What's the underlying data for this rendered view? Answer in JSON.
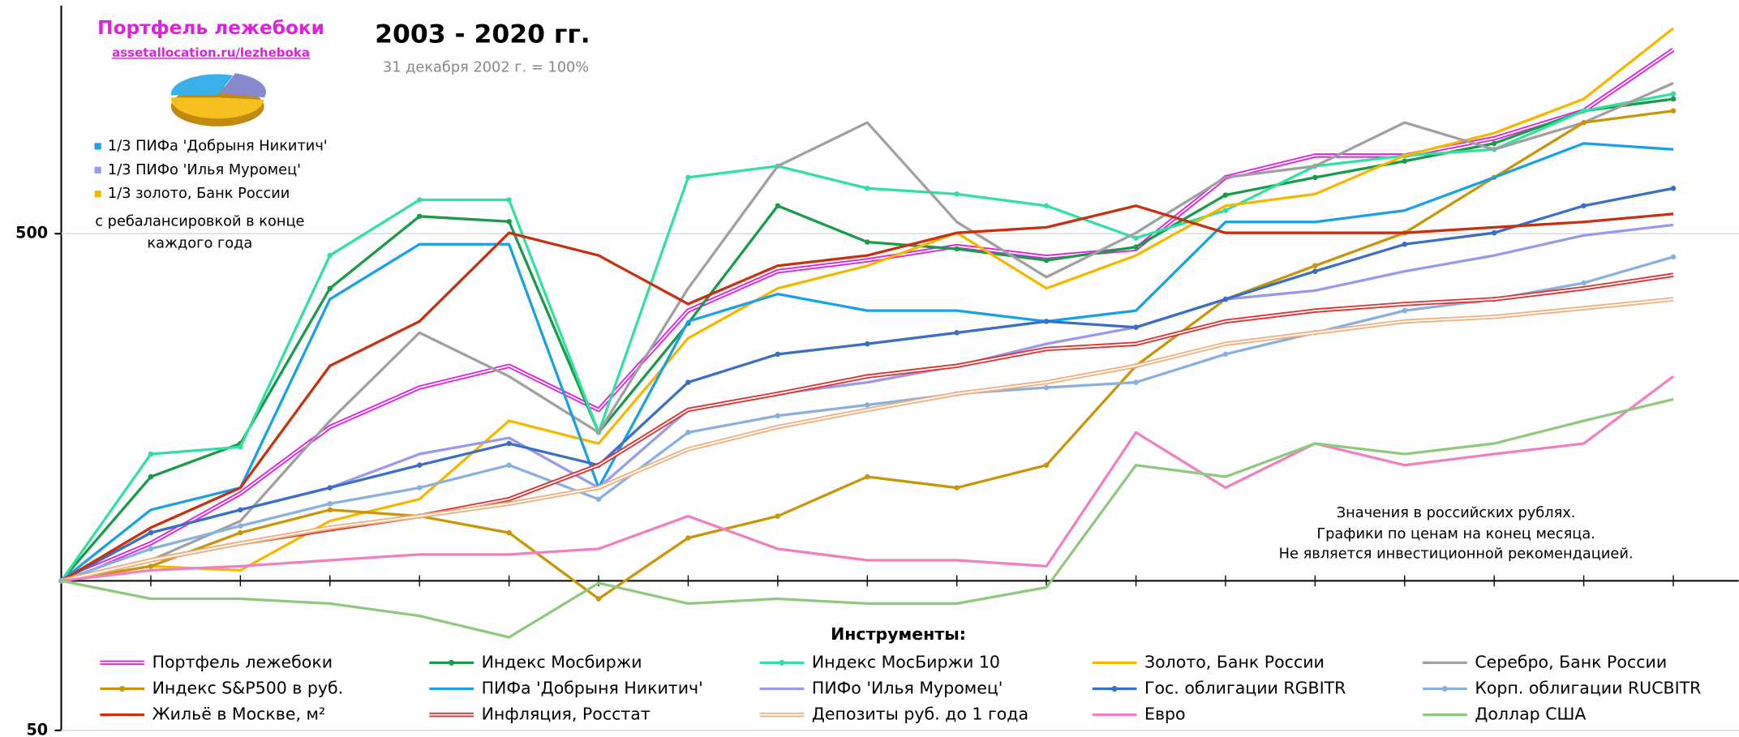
{
  "chart_data": {
    "type": "line",
    "title": "2003 - 2020 гг.",
    "subtitle": "31 декабря 2002 г. = 100%",
    "legend_title": "Инструменты:",
    "notes": [
      "Значения в российских рублях.",
      "Графики по ценам на конец месяца.",
      "Не является инвестиционной рекомендацией."
    ],
    "portfolio_box": {
      "title": "Портфель лежебоки",
      "link": "assetallocation.ru/lezheboka",
      "components": [
        {
          "text": "1/3 ПИФа 'Добрыня Никитич'",
          "color": "#1aa0e8"
        },
        {
          "text": "1/3 ПИФо 'Илья Муромец'",
          "color": "#9999ee"
        },
        {
          "text": "1/3 золото, Банк России",
          "color": "#f5b800"
        }
      ],
      "note": [
        "с ребалансировкой в конце",
        "каждого года"
      ]
    },
    "log_scale": true,
    "ylim": [
      50,
      1440
    ],
    "yticks": [
      50,
      500
    ],
    "x_axis_at": 100,
    "categories": [
      null,
      null,
      null,
      null,
      null,
      null,
      null,
      null,
      null,
      null,
      null,
      null,
      null,
      null,
      null,
      null,
      null,
      null,
      null
    ],
    "series": [
      {
        "name": "Портфель лежебоки",
        "color": "#e020e0",
        "style": "double",
        "values": [
          100,
          119,
          150,
          204,
          245,
          271,
          221,
          350,
          420,
          442,
          472,
          449,
          466,
          649,
          718,
          718,
          778,
          884,
          1174
        ]
      },
      {
        "name": "Индекс Мосбиржи",
        "color": "#1a9a4a",
        "markers": true,
        "values": [
          100,
          162,
          189,
          388,
          542,
          529,
          199,
          330,
          569,
          481,
          466,
          442,
          470,
          598,
          649,
          700,
          760,
          884,
          934
        ]
      },
      {
        "name": "Индекс МосБиржи 10",
        "color": "#33e0a0",
        "markers": true,
        "values": [
          100,
          180,
          186,
          452,
          585,
          585,
          199,
          649,
          684,
          617,
          601,
          569,
          490,
          557,
          684,
          718,
          739,
          884,
          956
        ]
      },
      {
        "name": "Золото, Банк России",
        "color": "#f5b800",
        "values": [
          100,
          107,
          105,
          132,
          146,
          210,
          189,
          308,
          388,
          431,
          502,
          388,
          452,
          569,
          601,
          718,
          797,
          934,
          1296
        ]
      },
      {
        "name": "Серебро, Банк России",
        "color": "#a0a0a0",
        "values": [
          100,
          110,
          132,
          210,
          316,
          258,
          199,
          388,
          684,
          837,
          528,
          409,
          502,
          649,
          684,
          837,
          739,
          837,
          1005
        ]
      },
      {
        "name": "Индекс S&P500 в руб.",
        "color": "#c8960a",
        "markers": true,
        "values": [
          100,
          107,
          125,
          139,
          135,
          125,
          92,
          122,
          135,
          162,
          154,
          171,
          271,
          369,
          431,
          502,
          649,
          837,
          884
        ]
      },
      {
        "name": "ПИФа 'Добрыня Никитич'",
        "color": "#1aa0e8",
        "values": [
          100,
          139,
          154,
          369,
          476,
          476,
          154,
          333,
          378,
          350,
          350,
          333,
          350,
          528,
          528,
          557,
          649,
          760,
          739
        ]
      },
      {
        "name": "ПИФо 'Илья Муромец'",
        "color": "#9999ee",
        "values": [
          100,
          125,
          139,
          154,
          180,
          194,
          154,
          221,
          238,
          251,
          271,
          300,
          324,
          369,
          384,
          420,
          452,
          496,
          521
        ]
      },
      {
        "name": "Гос. облигации RGBITR",
        "color": "#3a6ec8",
        "markers": true,
        "values": [
          100,
          125,
          139,
          154,
          171,
          189,
          171,
          251,
          286,
          300,
          316,
          333,
          324,
          369,
          420,
          476,
          502,
          569,
          617
        ]
      },
      {
        "name": "Корп. облигации RUCBITR",
        "color": "#8ab0e0",
        "markers": true,
        "values": [
          100,
          116,
          129,
          143,
          154,
          171,
          146,
          199,
          215,
          226,
          238,
          245,
          251,
          286,
          316,
          350,
          369,
          398,
          449
        ]
      },
      {
        "name": "Жильё в Москве, м²",
        "color": "#c83010",
        "values": [
          100,
          128,
          154,
          271,
          333,
          502,
          452,
          361,
          431,
          452,
          502,
          515,
          569,
          502,
          502,
          502,
          515,
          528,
          548
        ]
      },
      {
        "name": "Инфляция, Росстат",
        "color": "#e03030",
        "style": "double",
        "values": [
          100,
          110,
          119,
          127,
          135,
          146,
          171,
          221,
          238,
          258,
          271,
          293,
          300,
          333,
          350,
          361,
          369,
          388,
          413
        ]
      },
      {
        "name": "Депозиты руб. до 1 года",
        "color": "#f0b080",
        "style": "double",
        "values": [
          100,
          110,
          119,
          128,
          135,
          143,
          154,
          184,
          204,
          221,
          238,
          251,
          271,
          300,
          316,
          333,
          340,
          354,
          369
        ]
      },
      {
        "name": "Евро",
        "color": "#f080c0",
        "values": [
          100,
          105,
          107,
          110,
          113,
          113,
          116,
          135,
          116,
          110,
          110,
          107,
          199,
          154,
          189,
          171,
          180,
          189,
          258
        ]
      },
      {
        "name": "Доллар США",
        "color": "#90c880",
        "values": [
          100,
          92,
          92,
          90,
          85,
          77,
          99,
          90,
          92,
          90,
          90,
          97,
          171,
          162,
          189,
          180,
          189,
          210,
          232
        ]
      }
    ]
  }
}
